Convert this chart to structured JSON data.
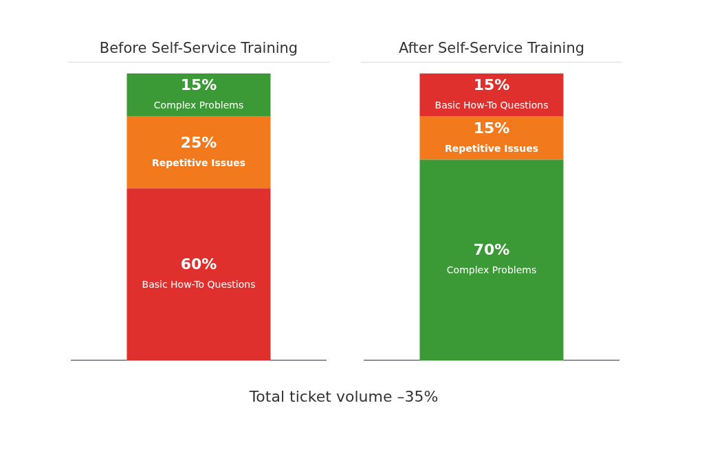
{
  "chart_data": [
    {
      "type": "bar",
      "title": "Before Self-Service Training",
      "categories": [
        null
      ],
      "stacked": true,
      "ylim": [
        0,
        100
      ],
      "tick_labels": false,
      "legend": false,
      "series": [
        {
          "name": "Basic How-To Questions",
          "color": "#e0302e",
          "values": [
            60
          ],
          "value_labels": [
            "60%"
          ]
        },
        {
          "name": "Repetitive Issues",
          "color": "#f27a1c",
          "values": [
            25
          ],
          "value_labels": [
            "25%"
          ]
        },
        {
          "name": "Complex Problems",
          "color": "#3b9a35",
          "values": [
            15
          ],
          "value_labels": [
            "15%"
          ]
        }
      ],
      "annotations": [
        "Total ticket volume –35%"
      ]
    },
    {
      "type": "bar",
      "title": "After Self-Service Training",
      "categories": [
        null
      ],
      "stacked": true,
      "ylim": [
        0,
        100
      ],
      "tick_labels": false,
      "legend": false,
      "series": [
        {
          "name": "Complex Problems",
          "color": "#3b9a35",
          "values": [
            70
          ],
          "value_labels": [
            "70%"
          ]
        },
        {
          "name": "Repetitive Issues",
          "color": "#f27a1c",
          "values": [
            15
          ],
          "value_labels": [
            "15%"
          ]
        },
        {
          "name": "Basic How-To Questions",
          "color": "#e0302e",
          "values": [
            15
          ],
          "value_labels": [
            "15%"
          ]
        }
      ]
    }
  ]
}
